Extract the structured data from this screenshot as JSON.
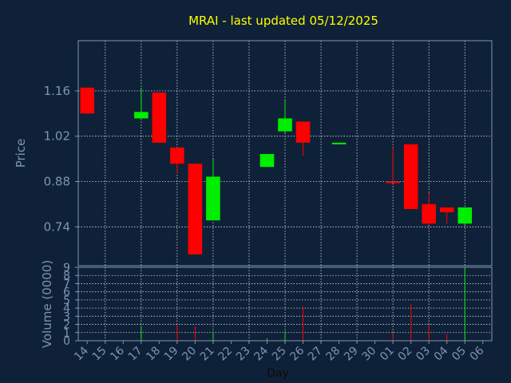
{
  "chart_data": {
    "type": "candlestick",
    "title": "MRAI - last updated 05/12/2025",
    "xlabel": "Day",
    "ylabel": "Price",
    "volume_label": "Volume (0000)",
    "price_ticks": [
      "1.16",
      "1.02",
      "0.88",
      "0.74"
    ],
    "price_ylim": [
      0.62,
      1.315
    ],
    "volume_ticks": [
      "0",
      "1",
      "2",
      "3",
      "4",
      "5",
      "6",
      "7",
      "8",
      "9"
    ],
    "volume_ylim": [
      0,
      9
    ],
    "grid": true,
    "colors": {
      "background": "#0f2138",
      "up": "#00ee00",
      "down": "#ff0000",
      "title": "#ffff00",
      "axis_text": "#7c95b5",
      "grid": "#cfd8e3",
      "frame": "#7c95b5"
    },
    "days": [
      {
        "label": "14",
        "open": 1.17,
        "high": 1.17,
        "low": 1.09,
        "close": 1.09,
        "volume": 0
      },
      {
        "label": "15",
        "open": null,
        "high": null,
        "low": null,
        "close": null,
        "volume": 0
      },
      {
        "label": "16",
        "open": null,
        "high": null,
        "low": null,
        "close": null,
        "volume": 0
      },
      {
        "label": "17",
        "open": 1.075,
        "high": 1.17,
        "low": 1.07,
        "close": 1.095,
        "volume": 1.8
      },
      {
        "label": "18",
        "open": 1.155,
        "high": 1.155,
        "low": 1.0,
        "close": 1.0,
        "volume": 0
      },
      {
        "label": "19",
        "open": 0.985,
        "high": 0.985,
        "low": 0.905,
        "close": 0.935,
        "volume": 2.0
      },
      {
        "label": "20",
        "open": 0.935,
        "high": 0.935,
        "low": 0.655,
        "close": 0.655,
        "volume": 1.8
      },
      {
        "label": "21",
        "open": 0.76,
        "high": 0.95,
        "low": 0.76,
        "close": 0.895,
        "volume": 1.0
      },
      {
        "label": "22",
        "open": null,
        "high": null,
        "low": null,
        "close": null,
        "volume": 0
      },
      {
        "label": "23",
        "open": null,
        "high": null,
        "low": null,
        "close": null,
        "volume": 0
      },
      {
        "label": "24",
        "open": 0.925,
        "high": 0.965,
        "low": 0.925,
        "close": 0.965,
        "volume": 0.3
      },
      {
        "label": "25",
        "open": 1.035,
        "high": 1.13,
        "low": 1.03,
        "close": 1.075,
        "volume": 1.2
      },
      {
        "label": "26",
        "open": 1.065,
        "high": 1.065,
        "low": 0.96,
        "close": 1.0,
        "volume": 4.2
      },
      {
        "label": "27",
        "open": null,
        "high": null,
        "low": null,
        "close": null,
        "volume": 0
      },
      {
        "label": "28",
        "open": 0.995,
        "high": 1.0,
        "low": 0.995,
        "close": 1.0,
        "volume": 0
      },
      {
        "label": "29",
        "open": null,
        "high": null,
        "low": null,
        "close": null,
        "volume": 0
      },
      {
        "label": "30",
        "open": null,
        "high": null,
        "low": null,
        "close": null,
        "volume": 0
      },
      {
        "label": "01",
        "open": 0.88,
        "high": 0.985,
        "low": 0.875,
        "close": 0.875,
        "volume": 1.0
      },
      {
        "label": "02",
        "open": 0.995,
        "high": 0.995,
        "low": 0.795,
        "close": 0.795,
        "volume": 4.5
      },
      {
        "label": "03",
        "open": 0.81,
        "high": 0.845,
        "low": 0.745,
        "close": 0.75,
        "volume": 2.0
      },
      {
        "label": "04",
        "open": 0.8,
        "high": 0.8,
        "low": 0.75,
        "close": 0.785,
        "volume": 0.8
      },
      {
        "label": "05",
        "open": 0.75,
        "high": 0.8,
        "low": 0.745,
        "close": 0.8,
        "volume": 9.0
      },
      {
        "label": "06",
        "open": null,
        "high": null,
        "low": null,
        "close": null,
        "volume": 0
      }
    ]
  }
}
